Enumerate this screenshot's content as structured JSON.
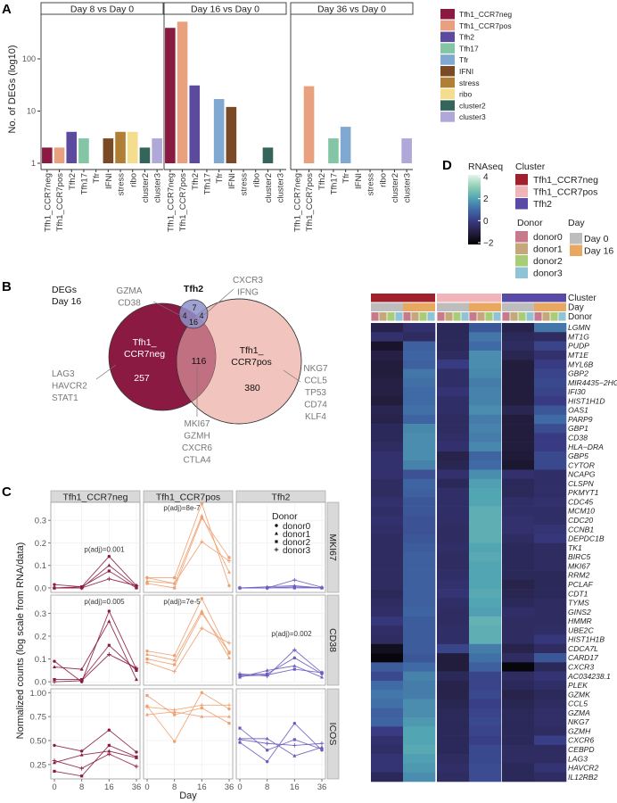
{
  "panel_labels": {
    "a": "A",
    "b": "B",
    "c": "C",
    "d": "D"
  },
  "colors": {
    "Tfh1_CCR7neg": "#8b1a42",
    "Tfh1_CCR7pos": "#e8a07e",
    "Tfh2": "#5b4a9e",
    "Tfh17": "#83c5a5",
    "Tfr": "#80a9d2",
    "IFNI": "#7a4a26",
    "stress": "#b07f35",
    "ribo": "#f5dd8e",
    "cluster2": "#35645a",
    "cluster3": "#b0a8d8"
  },
  "chart_data": [
    {
      "type": "bar",
      "panel": "A",
      "ylabel": "No. of DEGs (log10)",
      "yscale": "log10",
      "yticks": [
        1,
        10,
        100
      ],
      "categories": [
        "Tfh1_CCR7neg",
        "Tfh1_CCR7pos",
        "Tfh2",
        "Tfh17",
        "Tfr",
        "IFNI",
        "stress",
        "ribo",
        "cluster2",
        "cluster3"
      ],
      "facets": [
        {
          "title": "Day 8 vs Day 0",
          "values": [
            2,
            2,
            4,
            3,
            null,
            3,
            4,
            4,
            2,
            3
          ]
        },
        {
          "title": "Day 16 vs Day 0",
          "values": [
            393,
            516,
            31,
            null,
            17,
            12,
            null,
            null,
            2,
            null
          ]
        },
        {
          "title": "Day 36 vs Day 0",
          "values": [
            null,
            30,
            null,
            3,
            5,
            null,
            null,
            null,
            null,
            3
          ]
        }
      ],
      "legend": [
        "Tfh1_CCR7neg",
        "Tfh1_CCR7pos",
        "Tfh2",
        "Tfh17",
        "Tfr",
        "IFNI",
        "stress",
        "ribo",
        "cluster2",
        "cluster3"
      ],
      "legend_position": "right"
    },
    {
      "type": "venn",
      "panel": "B",
      "title_lines": [
        "DEGs",
        "Day 16"
      ],
      "sets": {
        "neg": {
          "label": [
            "Tfh1_",
            "CCR7neg"
          ],
          "color": "#8b1a42"
        },
        "pos": {
          "label": [
            "Tfh1_",
            "CCR7pos"
          ],
          "color": "#f1c4be"
        },
        "tfh2": {
          "label": [
            "Tfh2"
          ],
          "color": "#8e90c8"
        }
      },
      "regions": {
        "neg_only": 257,
        "pos_only": 380,
        "neg_pos": 116,
        "tfh2_only": 7,
        "tfh2_neg": 4,
        "tfh2_pos": 4,
        "all": 16
      },
      "annotations": {
        "neg_only": [
          "LAG3",
          "HAVCR2",
          "STAT1"
        ],
        "pos_only": [
          "NKG7",
          "CCL5",
          "TP53",
          "CD74",
          "KLF4"
        ],
        "neg_pos": [
          "MKI67",
          "GZMH",
          "CXCR6",
          "CTLA4"
        ],
        "tfh2_neg": [
          "GZMA",
          "CD38"
        ],
        "tfh2_pos": [
          "CXCR3",
          "IFNG"
        ]
      }
    },
    {
      "type": "line",
      "panel": "C",
      "xlabel": "Day",
      "ylabel": "Normalized counts (log scale from RNA/data)",
      "x": [
        0,
        8,
        16,
        36
      ],
      "columns": [
        "Tfh1_CCR7neg",
        "Tfh1_CCR7pos",
        "Tfh2"
      ],
      "column_colors": [
        "#8b1a42",
        "#f0a070",
        "#6b5cc0"
      ],
      "legend_title": "Donor",
      "donors": [
        {
          "name": "donor0",
          "marker": "circle"
        },
        {
          "name": "donor1",
          "marker": "triangle"
        },
        {
          "name": "donor2",
          "marker": "square"
        },
        {
          "name": "donor3",
          "marker": "plus"
        }
      ],
      "rows": [
        {
          "gene": "MKI67",
          "ylim": [
            -0.02,
            0.38
          ],
          "yticks": [
            0.0,
            0.1,
            0.2,
            0.3
          ],
          "ytick_labels": [
            "0.0",
            "0.1",
            "0.2",
            "0.3"
          ],
          "pvals": [
            "p(adj)=0.001",
            "p(adj)=8e-7",
            ""
          ],
          "data": [
            [
              [
                0.015,
                0.005,
                0.14,
                0.01
              ],
              [
                0,
                0,
                0.1,
                0.005
              ],
              [
                0,
                0.005,
                0.075,
                0
              ],
              [
                0,
                0,
                0.04,
                0.01
              ]
            ],
            [
              [
                0.045,
                0.045,
                0.375,
                0.01
              ],
              [
                0.03,
                0.02,
                0.32,
                0.07
              ],
              [
                0.02,
                0,
                0.31,
                0.135
              ],
              [
                0.045,
                0.02,
                0.205,
                0.12
              ]
            ],
            [
              [
                0,
                0,
                0.005,
                0
              ],
              [
                0,
                0.005,
                0.01,
                0
              ],
              [
                0,
                0,
                0,
                0
              ],
              [
                0,
                0,
                0.035,
                0.003
              ]
            ]
          ]
        },
        {
          "gene": "CD38",
          "ylim": [
            -0.015,
            0.38
          ],
          "yticks": [
            0.0,
            0.1,
            0.2,
            0.3
          ],
          "ytick_labels": [
            "0.0",
            "0.1",
            "0.2",
            "0.3"
          ],
          "pvals": [
            "p(adj)=0.005",
            "p(adj)=7e-5",
            "p(adj)=0.002"
          ],
          "data": [
            [
              [
                0.09,
                0,
                0.31,
                0.055
              ],
              [
                0.065,
                0.055,
                0.265,
                0.01
              ],
              [
                0.01,
                0.01,
                0.16,
                0.05
              ],
              [
                0,
                0.005,
                0.12,
                0.06
              ]
            ],
            [
              [
                0.135,
                0.115,
                0.365,
                0.125
              ],
              [
                0.12,
                0.095,
                0.31,
                0.105
              ],
              [
                0.1,
                0.075,
                0.3,
                0.13
              ],
              [
                0.085,
                0.045,
                0.235,
                0.17
              ]
            ],
            [
              [
                0.03,
                0.035,
                0.105,
                0.035
              ],
              [
                0.02,
                0.05,
                0.07,
                0.02
              ],
              [
                0.025,
                0.03,
                0.055,
                0.04
              ],
              [
                0.035,
                0.025,
                0.14,
                0.04
              ]
            ]
          ]
        },
        {
          "gene": "ICOS",
          "ylim": [
            0.1,
            1.04
          ],
          "yticks": [
            0.25,
            0.5,
            0.75,
            1.0
          ],
          "ytick_labels": [
            "0.25",
            "0.50",
            "0.75",
            "1.00"
          ],
          "pvals": [
            "",
            "",
            ""
          ],
          "data": [
            [
              [
                0.45,
                0.39,
                0.61,
                0.38
              ],
              [
                0.27,
                0.35,
                0.39,
                0.32
              ],
              [
                0.18,
                0.13,
                0.45,
                0.33
              ],
              [
                0.29,
                0.21,
                0.36,
                0.23
              ]
            ],
            [
              [
                0.86,
                0.49,
                1.0,
                0.83
              ],
              [
                0.77,
                0.8,
                0.75,
                0.75
              ],
              [
                0.97,
                0.77,
                0.84,
                0.68
              ],
              [
                0.85,
                0.82,
                0.87,
                0.87
              ]
            ],
            [
              [
                0.48,
                0.28,
                0.68,
                0.4
              ],
              [
                0.52,
                0.52,
                0.34,
                0.43
              ],
              [
                0.63,
                0.4,
                0.51,
                0.41
              ],
              [
                0.51,
                0.47,
                0.45,
                0.47
              ]
            ]
          ]
        }
      ]
    },
    {
      "type": "heatmap",
      "panel": "D",
      "legend_title": "RNAseq",
      "scale": {
        "min": -2,
        "max": 4,
        "ticks": [
          4,
          2,
          0,
          -2
        ],
        "tick_labels": [
          "4",
          "2",
          "0",
          "−2"
        ]
      },
      "annotation_labels": [
        "Cluster",
        "Day",
        "Donor"
      ],
      "cluster_legend": {
        "title": "Cluster",
        "items": [
          {
            "label": "Tfh1_CCR7neg",
            "color": "#a0202e"
          },
          {
            "label": "Tfh1_CCR7pos",
            "color": "#f0b5b8"
          },
          {
            "label": "Tfh2",
            "color": "#5a4aa8"
          }
        ]
      },
      "donor_legend": {
        "title": "Donor",
        "items": [
          {
            "label": "donor0",
            "color": "#c77a8b"
          },
          {
            "label": "donor1",
            "color": "#c5a77c"
          },
          {
            "label": "donor2",
            "color": "#a8cc78"
          },
          {
            "label": "donor3",
            "color": "#8fc3d5"
          }
        ]
      },
      "day_legend": {
        "title": "Day",
        "items": [
          {
            "label": "Day 0",
            "color": "#bdbdbd"
          },
          {
            "label": "Day 16",
            "color": "#e8a860"
          }
        ]
      },
      "column_blocks": [
        "Tfh1_CCR7neg Day 0",
        "Tfh1_CCR7neg Day 16",
        "Tfh1_CCR7pos Day 0",
        "Tfh1_CCR7pos Day 16",
        "Tfh2 Day 0",
        "Tfh2 Day 16"
      ],
      "genes": [
        "LGMN",
        "MT1G",
        "PUDP",
        "MT1E",
        "MYL6B",
        "GBP2",
        "MIR4435−2HG",
        "IFI30",
        "HIST1H1D",
        "OAS1",
        "PARP9",
        "GBP1",
        "CD38",
        "HLA−DRA",
        "GBP5",
        "CYTOR",
        "NCAPG",
        "CLSPN",
        "PKMYT1",
        "CDC45",
        "MCM10",
        "CDC20",
        "CCNB1",
        "DEPDC1B",
        "TK1",
        "BIRC5",
        "MKI67",
        "RRM2",
        "PCLAF",
        "CDT1",
        "TYMS",
        "GINS2",
        "HMMR",
        "UBE2C",
        "HIST1H1B",
        "CDCA7L",
        "CARD17",
        "CXCR3",
        "AC034238.1",
        "PLEK",
        "GZMK",
        "CCL5",
        "GZMA",
        "NKG7",
        "GZMH",
        "CXCR6",
        "CEBPD",
        "LAG3",
        "HAVCR2",
        "IL12RB2"
      ],
      "values": [
        [
          -0.8,
          -0.3,
          -0.6,
          0.6,
          -0.8,
          1.2
        ],
        [
          -0.3,
          -0.5,
          -0.6,
          1.2,
          -0.6,
          -0.5
        ],
        [
          -1.3,
          0.8,
          -0.6,
          1.0,
          -0.5,
          0.2
        ],
        [
          -0.9,
          0.9,
          -0.5,
          1.6,
          -0.7,
          -0.3
        ],
        [
          -1.0,
          0.8,
          0.0,
          1.6,
          -1.0,
          0.0
        ],
        [
          -1.0,
          1.2,
          -0.4,
          1.5,
          -1.0,
          0.2
        ],
        [
          -0.9,
          1.1,
          -0.4,
          1.3,
          -1.0,
          0.3
        ],
        [
          -0.9,
          1.0,
          -0.2,
          1.4,
          -1.0,
          0.2
        ],
        [
          -1.0,
          1.0,
          -0.4,
          1.4,
          -1.0,
          0.0
        ],
        [
          -0.7,
          1.1,
          -0.4,
          1.6,
          -0.7,
          0.6
        ],
        [
          -0.8,
          0.9,
          -0.5,
          1.3,
          -1.0,
          1.0
        ],
        [
          -0.6,
          1.5,
          -0.5,
          1.4,
          -1.0,
          0.4
        ],
        [
          -0.6,
          1.6,
          -0.4,
          1.3,
          -1.0,
          0.0
        ],
        [
          -0.5,
          1.6,
          -0.3,
          1.5,
          -1.0,
          0.0
        ],
        [
          -0.3,
          1.6,
          -0.8,
          0.9,
          -1.1,
          0.3
        ],
        [
          -0.3,
          1.4,
          -0.7,
          1.0,
          -1.2,
          0.3
        ],
        [
          -0.3,
          0.5,
          -0.3,
          1.6,
          -0.3,
          -0.4
        ],
        [
          -0.5,
          0.9,
          -0.6,
          1.9,
          -0.6,
          -0.4
        ],
        [
          -0.5,
          0.8,
          -0.4,
          2.0,
          -0.6,
          -0.4
        ],
        [
          -0.3,
          0.6,
          -0.4,
          2.0,
          -0.4,
          -0.3
        ],
        [
          -0.4,
          0.6,
          -0.4,
          2.2,
          -0.4,
          -0.4
        ],
        [
          -0.3,
          0.5,
          -0.4,
          2.2,
          -0.3,
          -0.4
        ],
        [
          -0.4,
          0.5,
          -0.5,
          2.2,
          -0.3,
          -0.2
        ],
        [
          -0.5,
          0.6,
          -0.5,
          2.2,
          -0.5,
          -0.1
        ],
        [
          -0.5,
          0.7,
          -0.4,
          2.0,
          -0.6,
          -0.5
        ],
        [
          -0.5,
          0.8,
          -0.5,
          2.1,
          -0.6,
          -0.5
        ],
        [
          -0.5,
          0.8,
          -0.5,
          2.0,
          -0.6,
          -0.5
        ],
        [
          -0.5,
          0.8,
          -0.4,
          2.0,
          -0.6,
          -0.6
        ],
        [
          -0.5,
          0.8,
          -0.3,
          2.0,
          -0.8,
          -0.6
        ],
        [
          -0.6,
          0.8,
          -0.2,
          2.1,
          -0.7,
          -0.6
        ],
        [
          -0.5,
          0.8,
          -0.4,
          2.0,
          -0.6,
          -0.5
        ],
        [
          -0.4,
          0.9,
          -0.5,
          1.9,
          -0.4,
          -0.5
        ],
        [
          -0.1,
          0.7,
          -0.5,
          2.3,
          -0.5,
          -0.5
        ],
        [
          -0.4,
          0.7,
          -0.4,
          2.2,
          -0.5,
          -0.4
        ],
        [
          -0.5,
          0.7,
          -0.4,
          2.2,
          -0.5,
          -0.1
        ],
        [
          -1.5,
          0.7,
          0.2,
          1.3,
          -0.8,
          -0.5
        ],
        [
          -1.8,
          0.6,
          -1.0,
          1.1,
          -0.5,
          0.6
        ],
        [
          0.7,
          1.0,
          -1.0,
          0.8,
          -1.8,
          -0.6
        ],
        [
          0.3,
          1.4,
          -0.6,
          0.2,
          -0.5,
          -0.2
        ],
        [
          1.0,
          1.3,
          -0.8,
          0.2,
          -0.6,
          -0.4
        ],
        [
          1.2,
          1.3,
          -0.8,
          0.3,
          -0.8,
          -0.6
        ],
        [
          1.1,
          1.6,
          -0.7,
          0.1,
          -0.7,
          -0.5
        ],
        [
          0.8,
          1.6,
          -0.6,
          0.2,
          -0.6,
          -0.4
        ],
        [
          0.9,
          1.8,
          -0.6,
          0.3,
          -0.6,
          -0.4
        ],
        [
          0.0,
          2.0,
          -0.6,
          0.2,
          -0.6,
          -0.5
        ],
        [
          -0.3,
          2.0,
          -0.6,
          0.1,
          -0.6,
          0.1
        ],
        [
          -0.4,
          2.1,
          -0.6,
          0.3,
          -0.5,
          -0.5
        ],
        [
          -0.2,
          1.9,
          -0.5,
          0.3,
          -0.5,
          -0.5
        ],
        [
          -0.2,
          1.8,
          -0.4,
          0.4,
          -0.6,
          -0.2
        ],
        [
          -0.6,
          1.6,
          -0.5,
          0.4,
          -0.6,
          -0.5
        ]
      ]
    }
  ]
}
